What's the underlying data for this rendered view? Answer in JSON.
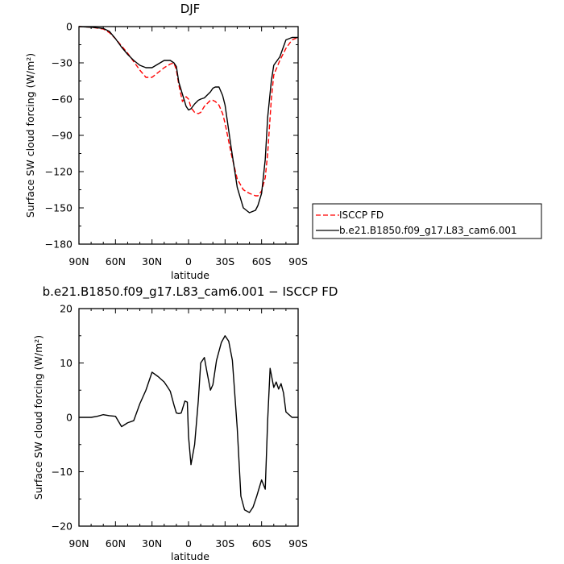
{
  "chart_data": [
    {
      "type": "line",
      "title": "DJF",
      "xlabel": "latitude",
      "ylabel": "Surface SW cloud forcing (W/m²)",
      "ylim": [
        -180,
        0
      ],
      "xlim": [
        90,
        -90
      ],
      "xticks": [
        {
          "value": 90,
          "label": "90N"
        },
        {
          "value": 60,
          "label": "60N"
        },
        {
          "value": 30,
          "label": "30N"
        },
        {
          "value": 0,
          "label": "0"
        },
        {
          "value": -30,
          "label": "30S"
        },
        {
          "value": -60,
          "label": "60S"
        },
        {
          "value": -90,
          "label": "90S"
        }
      ],
      "yticks": [
        {
          "value": 0,
          "label": "0"
        },
        {
          "value": -30,
          "label": "−30"
        },
        {
          "value": -60,
          "label": "−60"
        },
        {
          "value": -90,
          "label": "−90"
        },
        {
          "value": -120,
          "label": "−120"
        },
        {
          "value": -150,
          "label": "−150"
        },
        {
          "value": -180,
          "label": "−180"
        }
      ],
      "legend_position": "right",
      "series": [
        {
          "name": "ISCCP FD",
          "color": "#ff0000",
          "dash": "dashed",
          "x": [
            90,
            80,
            70,
            65,
            60,
            55,
            50,
            45,
            40,
            35,
            30,
            25,
            20,
            15,
            12,
            10,
            8,
            5,
            2,
            0,
            -2,
            -5,
            -8,
            -10,
            -13,
            -15,
            -18,
            -20,
            -22,
            -25,
            -28,
            -30,
            -35,
            -40,
            -45,
            -50,
            -55,
            -57,
            -60,
            -63,
            -65,
            -68,
            -70,
            -75,
            -80,
            -85,
            -90
          ],
          "y": [
            0,
            -0.5,
            -2,
            -5,
            -10,
            -16,
            -22,
            -29,
            -36,
            -42,
            -42,
            -38,
            -34,
            -31,
            -30,
            -36,
            -48,
            -62,
            -58,
            -60,
            -67,
            -71,
            -72,
            -71,
            -66,
            -64,
            -61,
            -61,
            -62,
            -65,
            -72,
            -80,
            -105,
            -126,
            -135,
            -138,
            -140,
            -140,
            -136,
            -125,
            -105,
            -60,
            -40,
            -28,
            -18,
            -11,
            -9
          ]
        },
        {
          "name": "b.e21.B1850.f09_g17.L83_cam6.001",
          "color": "#000000",
          "dash": "solid",
          "x": [
            90,
            80,
            70,
            65,
            60,
            55,
            50,
            45,
            40,
            35,
            30,
            25,
            20,
            15,
            12,
            10,
            8,
            5,
            2,
            0,
            -2,
            -5,
            -8,
            -10,
            -13,
            -15,
            -18,
            -20,
            -22,
            -25,
            -28,
            -30,
            -35,
            -40,
            -45,
            -50,
            -55,
            -57,
            -60,
            -63,
            -65,
            -68,
            -70,
            -75,
            -80,
            -85,
            -90
          ],
          "y": [
            0,
            -0.5,
            -1.5,
            -4,
            -10,
            -17,
            -23,
            -28,
            -32,
            -34,
            -34,
            -31,
            -28,
            -28,
            -30,
            -33,
            -46,
            -56,
            -66,
            -69,
            -68,
            -64,
            -61,
            -60,
            -59,
            -57,
            -54,
            -51,
            -50,
            -50,
            -57,
            -65,
            -100,
            -133,
            -150,
            -154,
            -152,
            -148,
            -138,
            -110,
            -75,
            -45,
            -32,
            -25,
            -11,
            -9,
            -9
          ]
        }
      ]
    },
    {
      "type": "line",
      "title": "b.e21.B1850.f09_g17.L83_cam6.001 − ISCCP FD",
      "xlabel": "latitude",
      "ylabel": "Surface SW cloud forcing (W/m²)",
      "ylim": [
        -20,
        20
      ],
      "xlim": [
        90,
        -90
      ],
      "xticks": [
        {
          "value": 90,
          "label": "90N"
        },
        {
          "value": 60,
          "label": "60N"
        },
        {
          "value": 30,
          "label": "30N"
        },
        {
          "value": 0,
          "label": "0"
        },
        {
          "value": -30,
          "label": "30S"
        },
        {
          "value": -60,
          "label": "60S"
        },
        {
          "value": -90,
          "label": "90S"
        }
      ],
      "yticks": [
        {
          "value": 20,
          "label": "20"
        },
        {
          "value": 10,
          "label": "10"
        },
        {
          "value": 0,
          "label": "0"
        },
        {
          "value": -10,
          "label": "−10"
        },
        {
          "value": -20,
          "label": "−20"
        }
      ],
      "series": [
        {
          "name": "",
          "color": "#000000",
          "dash": "solid",
          "x": [
            90,
            80,
            75,
            70,
            65,
            60,
            55,
            50,
            45,
            40,
            35,
            30,
            25,
            20,
            17,
            15,
            12,
            10,
            8,
            6,
            3,
            1,
            0,
            -2,
            -5,
            -8,
            -10,
            -13,
            -15,
            -18,
            -20,
            -23,
            -27,
            -30,
            -33,
            -36,
            -40,
            -43,
            -46,
            -50,
            -53,
            -56,
            -60,
            -63,
            -65,
            -67,
            -70,
            -72,
            -74,
            -76,
            -78,
            -80,
            -85,
            -90
          ],
          "y": [
            0,
            0,
            0.2,
            0.5,
            0.3,
            0.2,
            -1.7,
            -1,
            -0.6,
            2.5,
            5,
            8.3,
            7.5,
            6.5,
            5.5,
            4.8,
            2.3,
            0.8,
            0.7,
            0.8,
            3,
            2.8,
            -3.5,
            -8.7,
            -5,
            3,
            10,
            11,
            8.5,
            5,
            6,
            10.5,
            13.8,
            15,
            14,
            10.5,
            -2,
            -14.5,
            -17,
            -17.5,
            -16.5,
            -14.5,
            -11.5,
            -13.2,
            -0.5,
            9,
            5.5,
            6.5,
            5.2,
            6.2,
            4.5,
            1,
            0,
            0
          ]
        }
      ]
    }
  ]
}
